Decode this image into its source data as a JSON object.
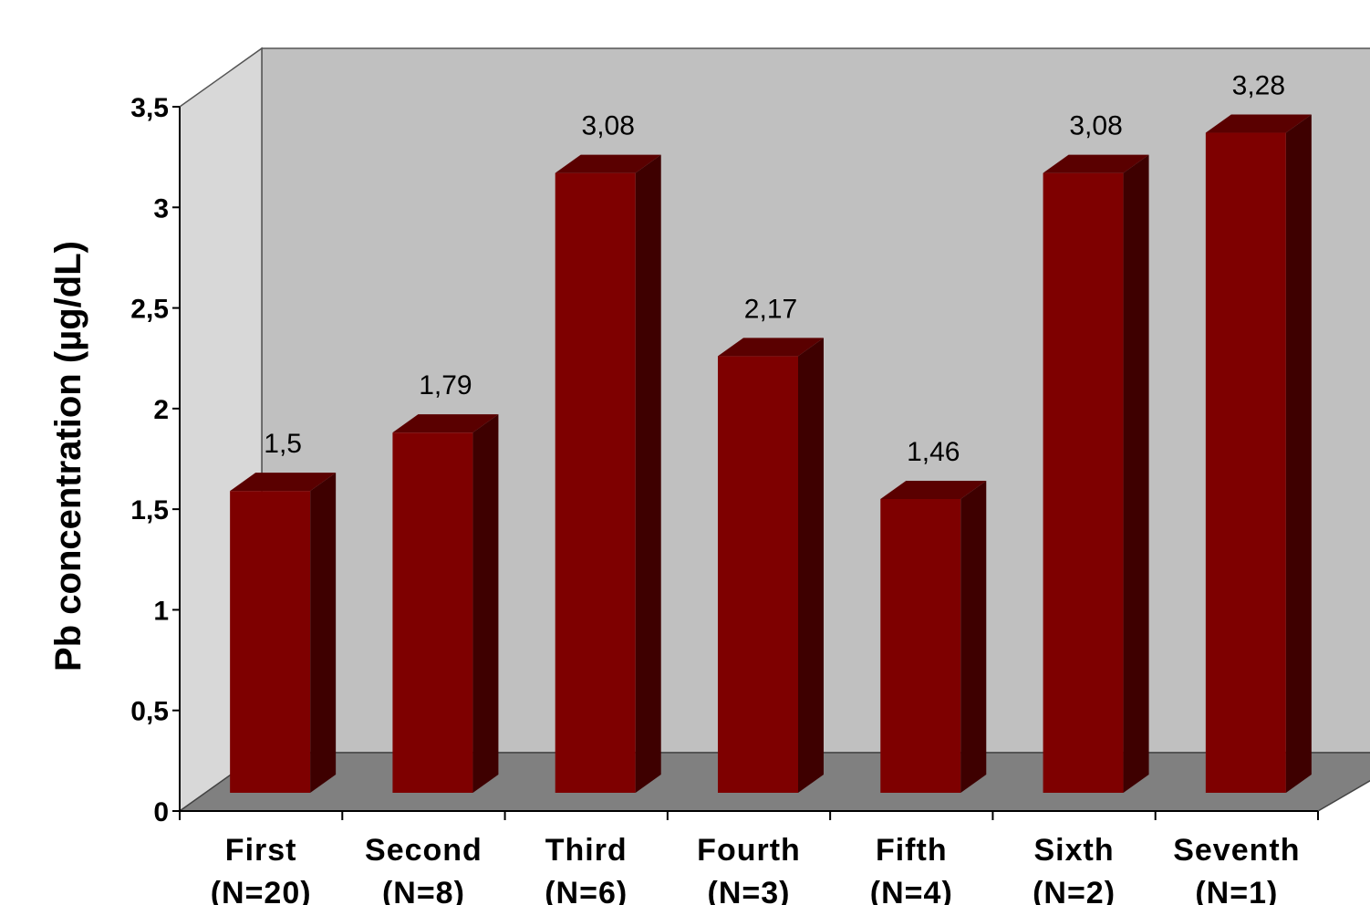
{
  "chart_data": {
    "type": "bar",
    "title": "",
    "xlabel": "",
    "ylabel": "Pb concentration (µg/dL)",
    "ylim": [
      0,
      3.5
    ],
    "yticks": [
      "0",
      "0,5",
      "1",
      "1,5",
      "2",
      "2,5",
      "3",
      "3,5"
    ],
    "categories": [
      {
        "name": "First",
        "n": "(N=20)"
      },
      {
        "name": "Second",
        "n": "(N=8)"
      },
      {
        "name": "Third",
        "n": "(N=6)"
      },
      {
        "name": "Fourth",
        "n": "(N=3)"
      },
      {
        "name": "Fifth",
        "n": "(N=4)"
      },
      {
        "name": "Sixth",
        "n": "(N=2)"
      },
      {
        "name": "Seventh",
        "n": "(N=1)"
      }
    ],
    "values": [
      1.5,
      1.79,
      3.08,
      2.17,
      1.46,
      3.08,
      3.28
    ],
    "data_labels": [
      "1,5",
      "1,79",
      "3,08",
      "2,17",
      "1,46",
      "3,08",
      "3,28"
    ],
    "colors": {
      "bar_front": "#7e0000",
      "bar_top": "#5a0000",
      "bar_side": "#3e0000",
      "wall": "#c0c0c0",
      "floor": "#808080",
      "side_wall": "#d8d8d8"
    },
    "grid": false,
    "legend": "none"
  }
}
